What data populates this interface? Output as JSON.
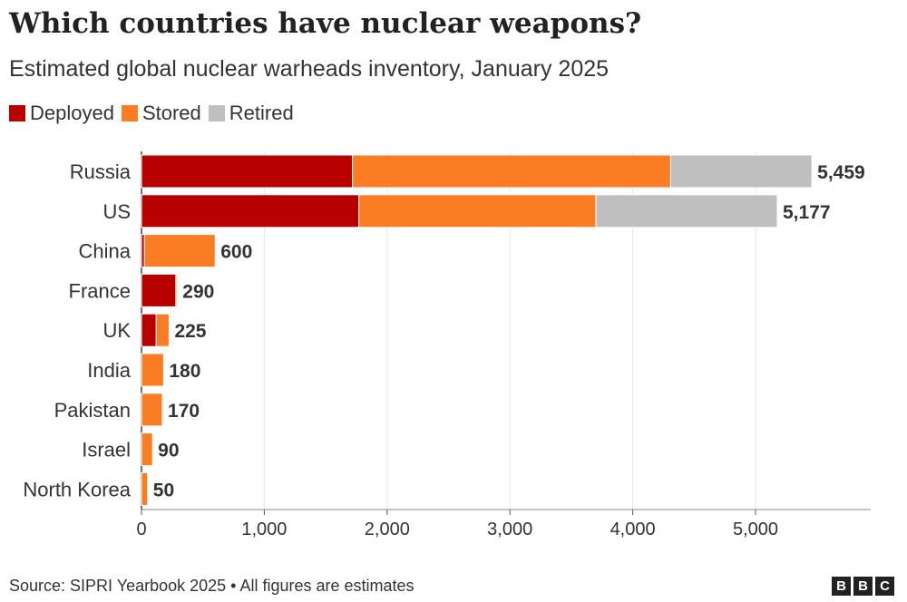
{
  "chart_data": {
    "type": "bar",
    "orientation": "horizontal",
    "stacked": true,
    "title": "Which countries have nuclear weapons?",
    "subtitle": "Estimated global nuclear warheads inventory, January 2025",
    "categories": [
      "Russia",
      "US",
      "China",
      "France",
      "UK",
      "India",
      "Pakistan",
      "Israel",
      "North Korea"
    ],
    "series": [
      {
        "name": "Deployed",
        "color": "#b80000",
        "values": [
          1718,
          1770,
          24,
          280,
          120,
          0,
          0,
          0,
          0
        ]
      },
      {
        "name": "Stored",
        "color": "#fa7d23",
        "values": [
          2591,
          1930,
          576,
          10,
          105,
          180,
          170,
          90,
          50
        ]
      },
      {
        "name": "Retired",
        "color": "#bfbfbf",
        "values": [
          1150,
          1477,
          0,
          0,
          0,
          0,
          0,
          0,
          0
        ]
      }
    ],
    "totals": [
      "5,459",
      "5,177",
      "600",
      "290",
      "225",
      "180",
      "170",
      "90",
      "50"
    ],
    "xlim": [
      0,
      5900
    ],
    "xticks": [
      0,
      1000,
      2000,
      3000,
      4000,
      5000
    ],
    "xtick_labels": [
      "0",
      "1,000",
      "2,000",
      "3,000",
      "4,000",
      "5,000"
    ],
    "grid": true,
    "legend_position": "top-left"
  },
  "footer": {
    "source": "Source: SIPRI Yearbook 2025 • All figures are estimates",
    "logo": [
      "B",
      "B",
      "C"
    ]
  }
}
